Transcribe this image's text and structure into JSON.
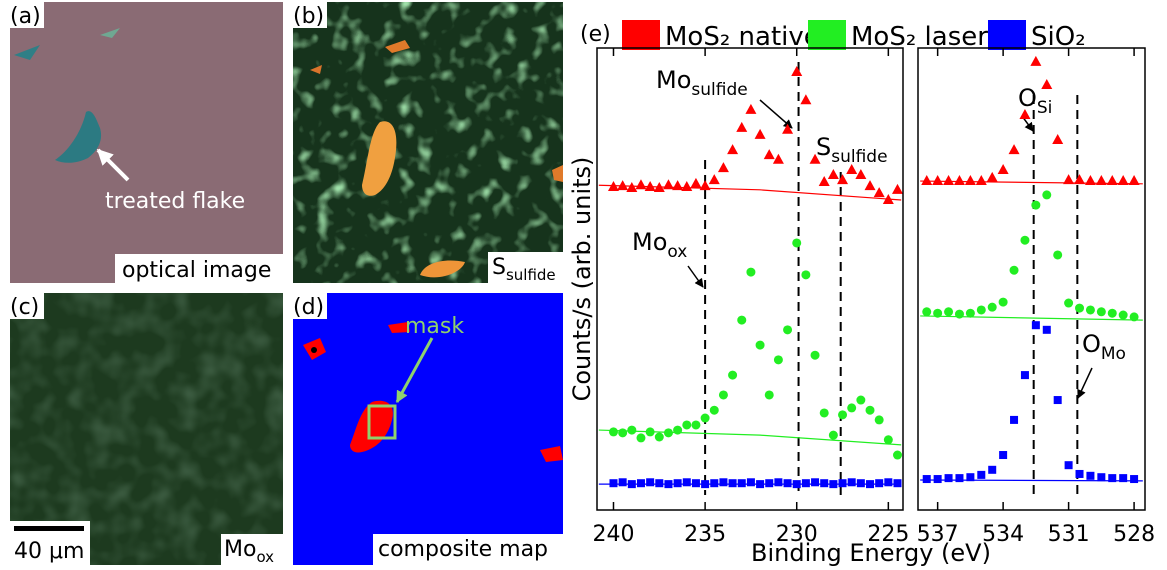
{
  "panels": [
    {
      "label": "(a)",
      "caption": "optical image",
      "annotation": "treated flake"
    },
    {
      "label": "(b)",
      "caption": "S",
      "caption_sub": "sulfide"
    },
    {
      "label": "(c)",
      "caption": "Mo",
      "caption_sub": "ox",
      "scale_bar": "40 μm"
    },
    {
      "label": "(d)",
      "caption": "composite map",
      "annotation": "mask"
    }
  ],
  "chart_data": [
    {
      "type": "scatter",
      "label": "(e)",
      "ylabel": "Counts/s (arb. units)",
      "xlabel": "Binding Energy (eV)",
      "xlim": [
        240.9,
        224.2
      ],
      "xticks": [
        240,
        235,
        230,
        225
      ],
      "ylim": [
        0,
        100
      ],
      "series": [
        {
          "name": "MoS₂ native",
          "color": "#ff0000",
          "marker": "triangle",
          "x": [
            240,
            239.5,
            239,
            238.5,
            238,
            237.5,
            237,
            236.5,
            236,
            235.5,
            235,
            234.5,
            234,
            233.5,
            233,
            232.5,
            232,
            231.5,
            231,
            230.5,
            230,
            229.5,
            229,
            228.5,
            228,
            227.5,
            227,
            226.5,
            226,
            225.5,
            225,
            224.5
          ],
          "values": [
            69.9,
            70.1,
            69.7,
            70.3,
            69.9,
            69.7,
            70.3,
            70.1,
            69.9,
            70.6,
            70.1,
            71.4,
            74.0,
            77.9,
            82.7,
            86.6,
            81.2,
            76.8,
            75.8,
            82.3,
            94.8,
            88.7,
            75.8,
            71.0,
            72.5,
            71.4,
            73.6,
            72.5,
            70.1,
            68.6,
            67.1,
            69.3
          ]
        },
        {
          "name": "MoS₂ laser",
          "color": "#22ee22",
          "marker": "circle",
          "x": [
            240,
            239.5,
            239,
            238.5,
            238,
            237.5,
            237,
            236.5,
            236,
            235.5,
            235,
            234.5,
            234,
            233.5,
            233,
            232.5,
            232,
            231.5,
            231,
            230.5,
            230,
            229.5,
            229,
            228.5,
            228,
            227.5,
            227,
            226.5,
            226,
            225.5,
            225,
            224.5
          ],
          "values": [
            16.9,
            16.7,
            17.3,
            15.6,
            16.9,
            15.8,
            16.7,
            17.3,
            18.4,
            18.4,
            19.9,
            21.6,
            24.9,
            29.2,
            41.1,
            51.5,
            35.7,
            24.9,
            32.5,
            39.0,
            57.8,
            50.9,
            33.5,
            21.0,
            16.2,
            20.6,
            22.1,
            23.8,
            21.6,
            19.5,
            15.2,
            11.9
          ]
        },
        {
          "name": "SiO₂",
          "color": "#0000ff",
          "marker": "square",
          "x": [
            240,
            239.5,
            239,
            238.5,
            238,
            237.5,
            237,
            236.5,
            236,
            235.5,
            235,
            234.5,
            234,
            233.5,
            233,
            232.5,
            232,
            231.5,
            231,
            230.5,
            230,
            229.5,
            229,
            228.5,
            228,
            227.5,
            227,
            226.5,
            226,
            225.5,
            225,
            224.5
          ],
          "values": [
            5.8,
            6.0,
            5.6,
            5.8,
            6.0,
            5.8,
            5.6,
            5.8,
            6.0,
            5.8,
            5.6,
            5.8,
            6.0,
            5.8,
            5.8,
            6.0,
            5.6,
            5.8,
            6.0,
            5.8,
            5.6,
            5.8,
            6.0,
            5.8,
            5.6,
            5.8,
            6.0,
            5.8,
            5.6,
            5.8,
            6.0,
            5.8
          ]
        },
        {
          "style": "line",
          "color": "#ff0000",
          "x": [
            240.8,
            232,
            224.3
          ],
          "values": [
            70.3,
            69.3,
            67.1
          ]
        },
        {
          "style": "line",
          "color": "#22ee22",
          "x": [
            240.8,
            232,
            224.3
          ],
          "values": [
            17.3,
            16.2,
            14.1
          ]
        },
        {
          "style": "line",
          "color": "#0000ff",
          "x": [
            240.8,
            232,
            224.3
          ],
          "values": [
            5.6,
            5.6,
            5.6
          ]
        }
      ],
      "annotations": [
        {
          "x": 229.9,
          "label": "Mo",
          "sub": "sulfide"
        },
        {
          "x": 235.0,
          "label": "Mo",
          "sub": "ox"
        },
        {
          "x": 227.6,
          "label": "S",
          "sub": "sulfide"
        }
      ]
    },
    {
      "type": "scatter",
      "xlim": [
        537.9,
        527.5
      ],
      "xticks": [
        537,
        534,
        531,
        528
      ],
      "ylim": [
        0,
        100
      ],
      "series": [
        {
          "color": "#ff0000",
          "marker": "triangle",
          "x": [
            537.5,
            537,
            536.5,
            536,
            535.5,
            535,
            534.5,
            534,
            533.5,
            533,
            532.5,
            532,
            531.5,
            531,
            530.5,
            530,
            529.5,
            529,
            528.5,
            528
          ],
          "values": [
            71.2,
            71.2,
            71.2,
            71.2,
            71.2,
            71.2,
            71.9,
            73.6,
            77.9,
            85.5,
            97.0,
            92.0,
            80.1,
            71.4,
            71.4,
            71.2,
            71.2,
            71.2,
            71.2,
            71.2
          ]
        },
        {
          "color": "#22ee22",
          "marker": "circle",
          "x": [
            537.5,
            537,
            536.5,
            536,
            535.5,
            535,
            534.5,
            534,
            533.5,
            533,
            532.5,
            532,
            531.5,
            531,
            530.5,
            530,
            529.5,
            529,
            528.5,
            528
          ],
          "values": [
            42.9,
            42.6,
            42.9,
            42.4,
            42.6,
            43.3,
            43.9,
            45.0,
            51.9,
            58.4,
            66.0,
            68.2,
            55.2,
            44.8,
            43.7,
            43.3,
            42.9,
            42.6,
            42.2,
            41.8
          ]
        },
        {
          "color": "#0000ff",
          "marker": "square",
          "x": [
            537.5,
            537,
            536.5,
            536,
            535.5,
            535,
            534.5,
            534,
            533.5,
            533,
            532.5,
            532,
            531.5,
            531,
            530.5,
            530,
            529.5,
            529,
            528.5,
            528
          ],
          "values": [
            6.7,
            6.7,
            6.9,
            6.9,
            7.1,
            7.6,
            8.7,
            11.9,
            19.5,
            29.2,
            40.0,
            39.0,
            23.8,
            9.7,
            7.8,
            7.4,
            7.1,
            6.9,
            6.9,
            6.7
          ]
        },
        {
          "style": "line",
          "color": "#ff0000",
          "x": [
            537.8,
            527.6
          ],
          "values": [
            71.2,
            70.6
          ]
        },
        {
          "style": "line",
          "color": "#22ee22",
          "x": [
            537.8,
            527.6
          ],
          "values": [
            42.0,
            41.1
          ]
        },
        {
          "style": "line",
          "color": "#0000ff",
          "x": [
            537.8,
            527.6
          ],
          "values": [
            6.5,
            6.3
          ]
        }
      ],
      "annotations": [
        {
          "x": 532.6,
          "label": "O",
          "sub": "Si"
        },
        {
          "x": 530.6,
          "label": "O",
          "sub": "Mo"
        }
      ]
    }
  ]
}
